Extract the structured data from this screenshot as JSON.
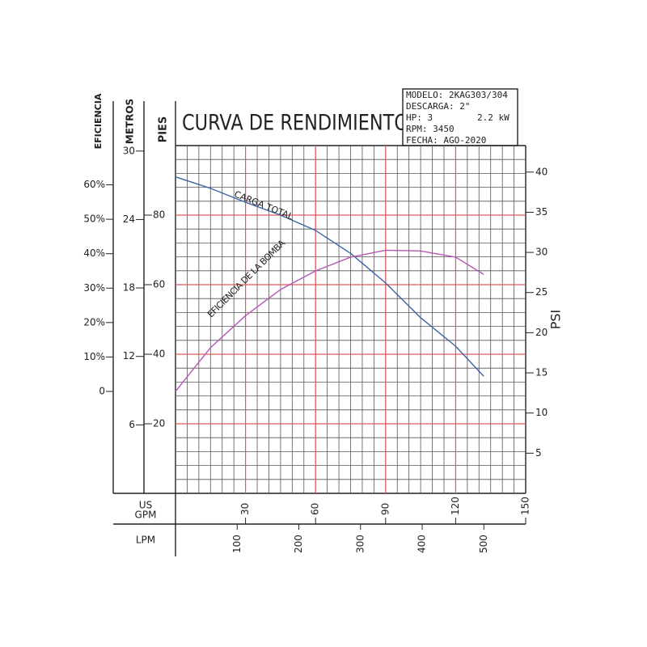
{
  "chart_data": {
    "type": "line",
    "title": "CURVA DE RENDIMIENTO",
    "info": [
      "MODELO: 2KAG303/304",
      "DESCARGA: 2\"",
      "HP: 3",
      "2.2 kW",
      "RPM: 3450",
      "FECHA: AGO-2020"
    ],
    "x": [
      0,
      15,
      30,
      45,
      60,
      75,
      90,
      105,
      120,
      132
    ],
    "xlim": [
      0,
      150
    ],
    "xticks": [
      30,
      60,
      90,
      120,
      150
    ],
    "x_label": [
      "US",
      "GPM"
    ],
    "x2lim": [
      0,
      567.8
    ],
    "x2ticks": [
      100,
      200,
      300,
      400,
      500
    ],
    "x2_label": "LPM",
    "y_label": "PIES",
    "ylim": [
      0,
      100
    ],
    "yticks": [
      20,
      40,
      60,
      80
    ],
    "y2_label": "PSI",
    "y2lim": [
      0,
      43.3
    ],
    "y2ticks": [
      5,
      10,
      15,
      20,
      25,
      30,
      35,
      40
    ],
    "m_label": "METROS",
    "mlim": [
      0,
      30.48
    ],
    "mticks": [
      6,
      12,
      18,
      24,
      30
    ],
    "eff_label": "EFICIENCIA",
    "efflim": [
      -29.6,
      71.4
    ],
    "effticks": [
      {
        "value": 60,
        "label": "60%"
      },
      {
        "value": 50,
        "label": "50%"
      },
      {
        "value": 40,
        "label": "40%"
      },
      {
        "value": 30,
        "label": "30%"
      },
      {
        "value": 20,
        "label": "20%"
      },
      {
        "value": 10,
        "label": "10%"
      },
      0
    ],
    "grid": true,
    "grid_color": "#e05a5a",
    "minor_grid": {
      "x": 5,
      "y": 4
    },
    "series": [
      {
        "name": "CARGA TOTAL",
        "color": "#3d62a6",
        "values": [
          91,
          87.7,
          83.7,
          80,
          75.6,
          69,
          60.5,
          50.5,
          42.3,
          33.7
        ]
      },
      {
        "name": "EFICIENCIA DE LA BOMBA",
        "color": "#b657b6",
        "axis": "eff",
        "values": [
          0,
          12.7,
          22,
          29.6,
          35,
          39,
          41,
          40.8,
          39,
          34
        ]
      }
    ]
  }
}
